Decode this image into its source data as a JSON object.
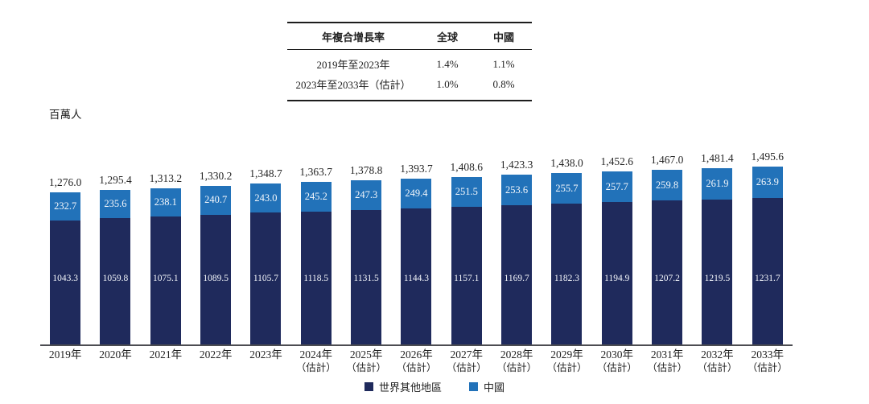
{
  "unit_label": "百萬人",
  "cagr_table": {
    "header": [
      "年複合增長率",
      "全球",
      "中國"
    ],
    "rows": [
      [
        "2019年至2023年",
        "1.4%",
        "1.1%"
      ],
      [
        "2023年至2033年（估計）",
        "1.0%",
        "0.8%"
      ]
    ]
  },
  "legend": [
    {
      "label": "世界其他地區",
      "color": "#1f2a5c"
    },
    {
      "label": "中國",
      "color": "#2272b9"
    }
  ],
  "chart_data": {
    "type": "bar",
    "stacked": true,
    "title": "",
    "ylabel": "百萬人",
    "xlabel": "",
    "grid": false,
    "legend_position": "bottom",
    "categories": [
      {
        "label": "2019年",
        "sublabel": ""
      },
      {
        "label": "2020年",
        "sublabel": ""
      },
      {
        "label": "2021年",
        "sublabel": ""
      },
      {
        "label": "2022年",
        "sublabel": ""
      },
      {
        "label": "2023年",
        "sublabel": ""
      },
      {
        "label": "2024年",
        "sublabel": "（估計）"
      },
      {
        "label": "2025年",
        "sublabel": "（估計）"
      },
      {
        "label": "2026年",
        "sublabel": "（估計）"
      },
      {
        "label": "2027年",
        "sublabel": "（估計）"
      },
      {
        "label": "2028年",
        "sublabel": "（估計）"
      },
      {
        "label": "2029年",
        "sublabel": "（估計）"
      },
      {
        "label": "2030年",
        "sublabel": "（估計）"
      },
      {
        "label": "2031年",
        "sublabel": "（估計）"
      },
      {
        "label": "2032年",
        "sublabel": "（估計）"
      },
      {
        "label": "2033年",
        "sublabel": "（估計）"
      }
    ],
    "series": [
      {
        "name": "世界其他地區",
        "color": "#1f2a5c",
        "values": [
          1043.3,
          1059.8,
          1075.1,
          1089.5,
          1105.7,
          1118.5,
          1131.5,
          1144.3,
          1157.1,
          1169.7,
          1182.3,
          1194.9,
          1207.2,
          1219.5,
          1231.7
        ],
        "value_labels": [
          "1043.3",
          "1059.8",
          "1075.1",
          "1089.5",
          "1105.7",
          "1118.5",
          "1131.5",
          "1144.3",
          "1157.1",
          "1169.7",
          "1182.3",
          "1194.9",
          "1207.2",
          "1219.5",
          "1231.7"
        ]
      },
      {
        "name": "中國",
        "color": "#2272b9",
        "values": [
          232.7,
          235.6,
          238.1,
          240.7,
          243.0,
          245.2,
          247.3,
          249.4,
          251.5,
          253.6,
          255.7,
          257.7,
          259.8,
          261.9,
          263.9
        ],
        "value_labels": [
          "232.7",
          "235.6",
          "238.1",
          "240.7",
          "243.0",
          "245.2",
          "247.3",
          "249.4",
          "251.5",
          "253.6",
          "255.7",
          "257.7",
          "259.8",
          "261.9",
          "263.9"
        ]
      }
    ],
    "totals": [
      1276.0,
      1295.4,
      1313.2,
      1330.2,
      1348.7,
      1363.7,
      1378.8,
      1393.7,
      1408.6,
      1423.3,
      1438.0,
      1452.6,
      1467.0,
      1481.4,
      1495.6
    ],
    "total_labels": [
      "1,276.0",
      "1,295.4",
      "1,313.2",
      "1,330.2",
      "1,348.7",
      "1,363.7",
      "1,378.8",
      "1,393.7",
      "1,408.6",
      "1,423.3",
      "1,438.0",
      "1,452.6",
      "1,467.0",
      "1,481.4",
      "1,495.6"
    ],
    "ylim": [
      0,
      1600
    ]
  }
}
